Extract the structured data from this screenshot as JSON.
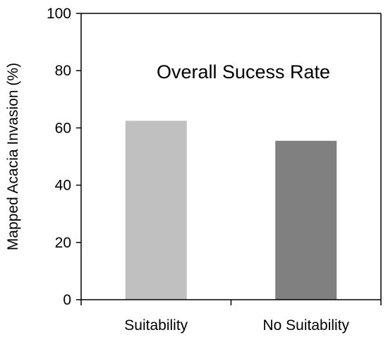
{
  "chart_data": {
    "type": "bar",
    "title": "Overall Sucess Rate",
    "xlabel": "",
    "ylabel": "Mapped Acacia Invasion  (%)",
    "ylim": [
      0,
      100
    ],
    "yticks": [
      0,
      20,
      40,
      60,
      80,
      100
    ],
    "categories": [
      "Suitability",
      "No Suitability"
    ],
    "values": [
      62.5,
      55.5
    ],
    "colors": [
      "#c0c0c0",
      "#808080"
    ],
    "grid": false,
    "legend": "none"
  }
}
